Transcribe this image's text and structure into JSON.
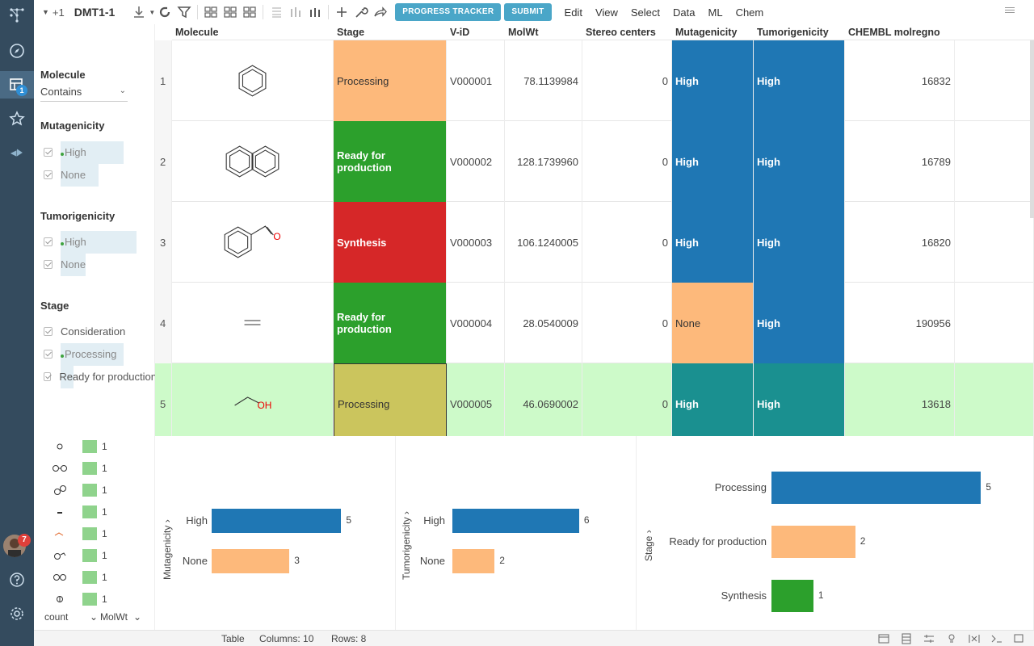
{
  "toolbar": {
    "count": "+1",
    "title": "DMT1-1",
    "buttons": {
      "progress": "PROGRESS TRACKER",
      "submit": "SUBMIT"
    },
    "menu": [
      "Edit",
      "View",
      "Select",
      "Data",
      "ML",
      "Chem"
    ]
  },
  "nav": {
    "badge": "1",
    "avatar_badge": "7"
  },
  "filters": {
    "molecule": {
      "title": "Molecule",
      "mode": "Contains"
    },
    "mutagenicity": {
      "title": "Mutagenicity",
      "items": [
        "High",
        "None"
      ]
    },
    "tumorigenicity": {
      "title": "Tumorigenicity",
      "items": [
        "High",
        "None"
      ]
    },
    "stage": {
      "title": "Stage",
      "items": [
        "Consideration",
        "Processing",
        "Ready for production"
      ]
    }
  },
  "grid": {
    "columns": [
      "Molecule",
      "Stage",
      "V-iD",
      "MolWt",
      "Stereo centers",
      "Mutagenicity",
      "Tumorigenicity",
      "CHEMBL molregno"
    ],
    "rows": [
      {
        "num": "1",
        "stage": "Processing",
        "vid": "V000001",
        "molwt": "78.1139984",
        "stereo": "0",
        "muta": "High",
        "tumor": "High",
        "chembl": "16832"
      },
      {
        "num": "2",
        "stage": "Ready for production",
        "vid": "V000002",
        "molwt": "128.1739960",
        "stereo": "0",
        "muta": "High",
        "tumor": "High",
        "chembl": "16789"
      },
      {
        "num": "3",
        "stage": "Synthesis",
        "vid": "V000003",
        "molwt": "106.1240005",
        "stereo": "0",
        "muta": "High",
        "tumor": "High",
        "chembl": "16820"
      },
      {
        "num": "4",
        "stage": "Ready for production",
        "vid": "V000004",
        "molwt": "28.0540009",
        "stereo": "0",
        "muta": "None",
        "tumor": "High",
        "chembl": "190956"
      },
      {
        "num": "5",
        "stage": "Processing",
        "vid": "V000005",
        "molwt": "46.0690002",
        "stereo": "0",
        "muta": "High",
        "tumor": "High",
        "chembl": "13618"
      }
    ],
    "colors": {
      "processing": "#fdb97b",
      "ready": "#2ca02c",
      "synthesis": "#d62728",
      "high": "#1f77b4",
      "none": "#fdb97b"
    },
    "atoms": {
      "o": "O",
      "oh": "OH"
    }
  },
  "mini": {
    "values": [
      "1",
      "1",
      "1",
      "1",
      "1",
      "1",
      "1",
      "1"
    ],
    "footer": {
      "count": "count",
      "molwt": "MolWt"
    }
  },
  "chart_data": [
    {
      "type": "bar",
      "ylabel": "Mutagenicity",
      "categories": [
        "High",
        "None"
      ],
      "values": [
        5,
        3
      ],
      "colors": [
        "#1f77b4",
        "#fdb97b"
      ],
      "labels": [
        "5",
        "3"
      ]
    },
    {
      "type": "bar",
      "ylabel": "Tumorigenicity",
      "categories": [
        "High",
        "None"
      ],
      "values": [
        6,
        2
      ],
      "colors": [
        "#1f77b4",
        "#fdb97b"
      ],
      "labels": [
        "6",
        "2"
      ]
    },
    {
      "type": "bar",
      "ylabel": "Stage",
      "categories": [
        "Processing",
        "Ready for production",
        "Synthesis"
      ],
      "values": [
        5,
        2,
        1
      ],
      "colors": [
        "#1f77b4",
        "#fdb97b",
        "#2ca02c"
      ],
      "labels": [
        "5",
        "2",
        "1"
      ]
    }
  ],
  "status": {
    "view": "Table",
    "columns": "Columns: 10",
    "rows": "Rows: 8"
  }
}
